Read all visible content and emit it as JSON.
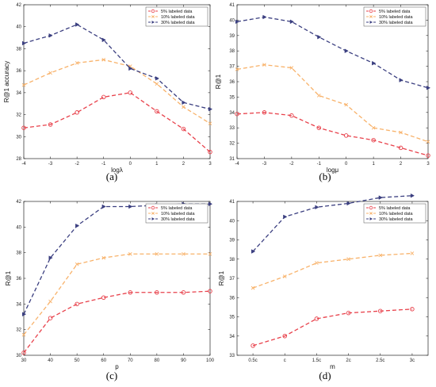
{
  "chart_data": [
    {
      "type": "line",
      "caption": "(a)",
      "xlabel": "logλ",
      "ylabel": "R@1 accuracy",
      "x": [
        -4,
        -3,
        -2,
        -1,
        0,
        1,
        2,
        3
      ],
      "xticks": [
        "-4",
        "-3",
        "-2",
        "-1",
        "0",
        "1",
        "2",
        "3"
      ],
      "xlim": [
        -4,
        3
      ],
      "ylim": [
        28,
        42
      ],
      "yticks": [
        28,
        30,
        32,
        34,
        36,
        38,
        40,
        42
      ],
      "legend_position": "top-right",
      "series": [
        {
          "name": "5% labeled data",
          "marker": "circle",
          "color": "#e8414b",
          "values": [
            30.8,
            31.1,
            32.2,
            33.6,
            34.0,
            32.3,
            30.7,
            28.6
          ]
        },
        {
          "name": "10% labeled data",
          "marker": "x",
          "color": "#f8b26a",
          "values": [
            34.7,
            35.8,
            36.7,
            37.0,
            36.4,
            34.8,
            32.7,
            31.2
          ]
        },
        {
          "name": "30% labeled data",
          "marker": "triangle",
          "color": "#3b3f80",
          "values": [
            38.5,
            39.2,
            40.2,
            38.8,
            36.2,
            35.3,
            33.1,
            32.5
          ]
        }
      ]
    },
    {
      "type": "line",
      "caption": "(b)",
      "xlabel": "logμ",
      "ylabel": "R@1",
      "x": [
        -4,
        -3,
        -2,
        -1,
        0,
        1,
        2,
        3
      ],
      "xticks": [
        "-4",
        "-3",
        "-2",
        "-1",
        "0",
        "1",
        "2",
        "3"
      ],
      "xlim": [
        -4,
        3
      ],
      "ylim": [
        31,
        41
      ],
      "yticks": [
        31,
        32,
        33,
        34,
        35,
        36,
        37,
        38,
        39,
        40,
        41
      ],
      "legend_position": "top-right",
      "series": [
        {
          "name": "5% labeled data",
          "marker": "circle",
          "color": "#e8414b",
          "values": [
            33.9,
            34.0,
            33.8,
            33.0,
            32.5,
            32.2,
            31.7,
            31.2
          ]
        },
        {
          "name": "10% labeled data",
          "marker": "x",
          "color": "#f8b26a",
          "values": [
            36.8,
            37.1,
            36.9,
            35.1,
            34.5,
            33.0,
            32.7,
            32.1
          ]
        },
        {
          "name": "30% labeled data",
          "marker": "triangle",
          "color": "#3b3f80",
          "values": [
            39.9,
            40.2,
            39.9,
            38.9,
            38.0,
            37.2,
            36.1,
            35.6
          ]
        }
      ]
    },
    {
      "type": "line",
      "caption": "(c)",
      "xlabel": "p",
      "ylabel": "R@1",
      "x": [
        30,
        40,
        50,
        60,
        70,
        80,
        90,
        100
      ],
      "xticks": [
        "30",
        "40",
        "50",
        "60",
        "70",
        "80",
        "90",
        "100"
      ],
      "xlim": [
        30,
        100
      ],
      "ylim": [
        30,
        42
      ],
      "yticks": [
        30,
        32,
        34,
        36,
        38,
        40,
        42
      ],
      "legend_position": "top-right",
      "series": [
        {
          "name": "5% labeled data",
          "marker": "circle",
          "color": "#e8414b",
          "values": [
            30.2,
            32.9,
            34.0,
            34.5,
            34.9,
            34.9,
            34.9,
            35.0
          ]
        },
        {
          "name": "10% labeled data",
          "marker": "x",
          "color": "#f8b26a",
          "values": [
            31.6,
            34.2,
            37.1,
            37.6,
            37.9,
            37.9,
            37.9,
            37.9
          ]
        },
        {
          "name": "30% labeled data",
          "marker": "triangle",
          "color": "#3b3f80",
          "values": [
            33.2,
            37.6,
            40.1,
            41.6,
            41.6,
            41.7,
            41.8,
            41.8
          ]
        }
      ]
    },
    {
      "type": "line",
      "caption": "(d)",
      "xlabel": "m",
      "ylabel": "R@1",
      "x": [
        0.5,
        1,
        1.5,
        2,
        2.5,
        3
      ],
      "xticks": [
        "0.5c",
        "c",
        "1.5c",
        "2c",
        "2.5c",
        "3c"
      ],
      "xlim": [
        0.25,
        3.25
      ],
      "ylim": [
        33,
        41
      ],
      "yticks": [
        33,
        34,
        35,
        36,
        37,
        38,
        39,
        40,
        41
      ],
      "legend_position": "top-right",
      "series": [
        {
          "name": "5% labeled data",
          "marker": "circle",
          "color": "#e8414b",
          "values": [
            33.5,
            34.0,
            34.9,
            35.2,
            35.3,
            35.4
          ]
        },
        {
          "name": "10% labeled data",
          "marker": "x",
          "color": "#f8b26a",
          "values": [
            36.5,
            37.1,
            37.8,
            38.0,
            38.2,
            38.3
          ]
        },
        {
          "name": "30% labeled data",
          "marker": "triangle",
          "color": "#3b3f80",
          "values": [
            38.4,
            40.2,
            40.7,
            40.9,
            41.2,
            41.3
          ]
        }
      ]
    }
  ]
}
